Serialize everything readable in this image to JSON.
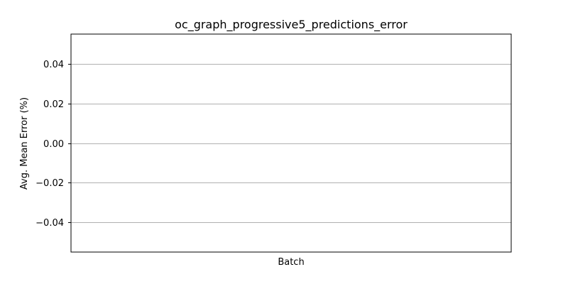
{
  "chart_data": {
    "type": "line",
    "title": "oc_graph_progressive5_predictions_error",
    "xlabel": "Batch",
    "ylabel": "Avg. Mean Error (%)",
    "ylim": [
      -0.055,
      0.055
    ],
    "yticks": [
      -0.04,
      -0.02,
      0.0,
      0.02,
      0.04
    ],
    "ytick_labels": [
      "−0.04",
      "−0.02",
      "0.00",
      "0.02",
      "0.04"
    ],
    "grid": "horizontal",
    "series": [],
    "colors": {
      "grid": "#b0b0b0",
      "axes": "#000000",
      "background": "#ffffff"
    }
  }
}
